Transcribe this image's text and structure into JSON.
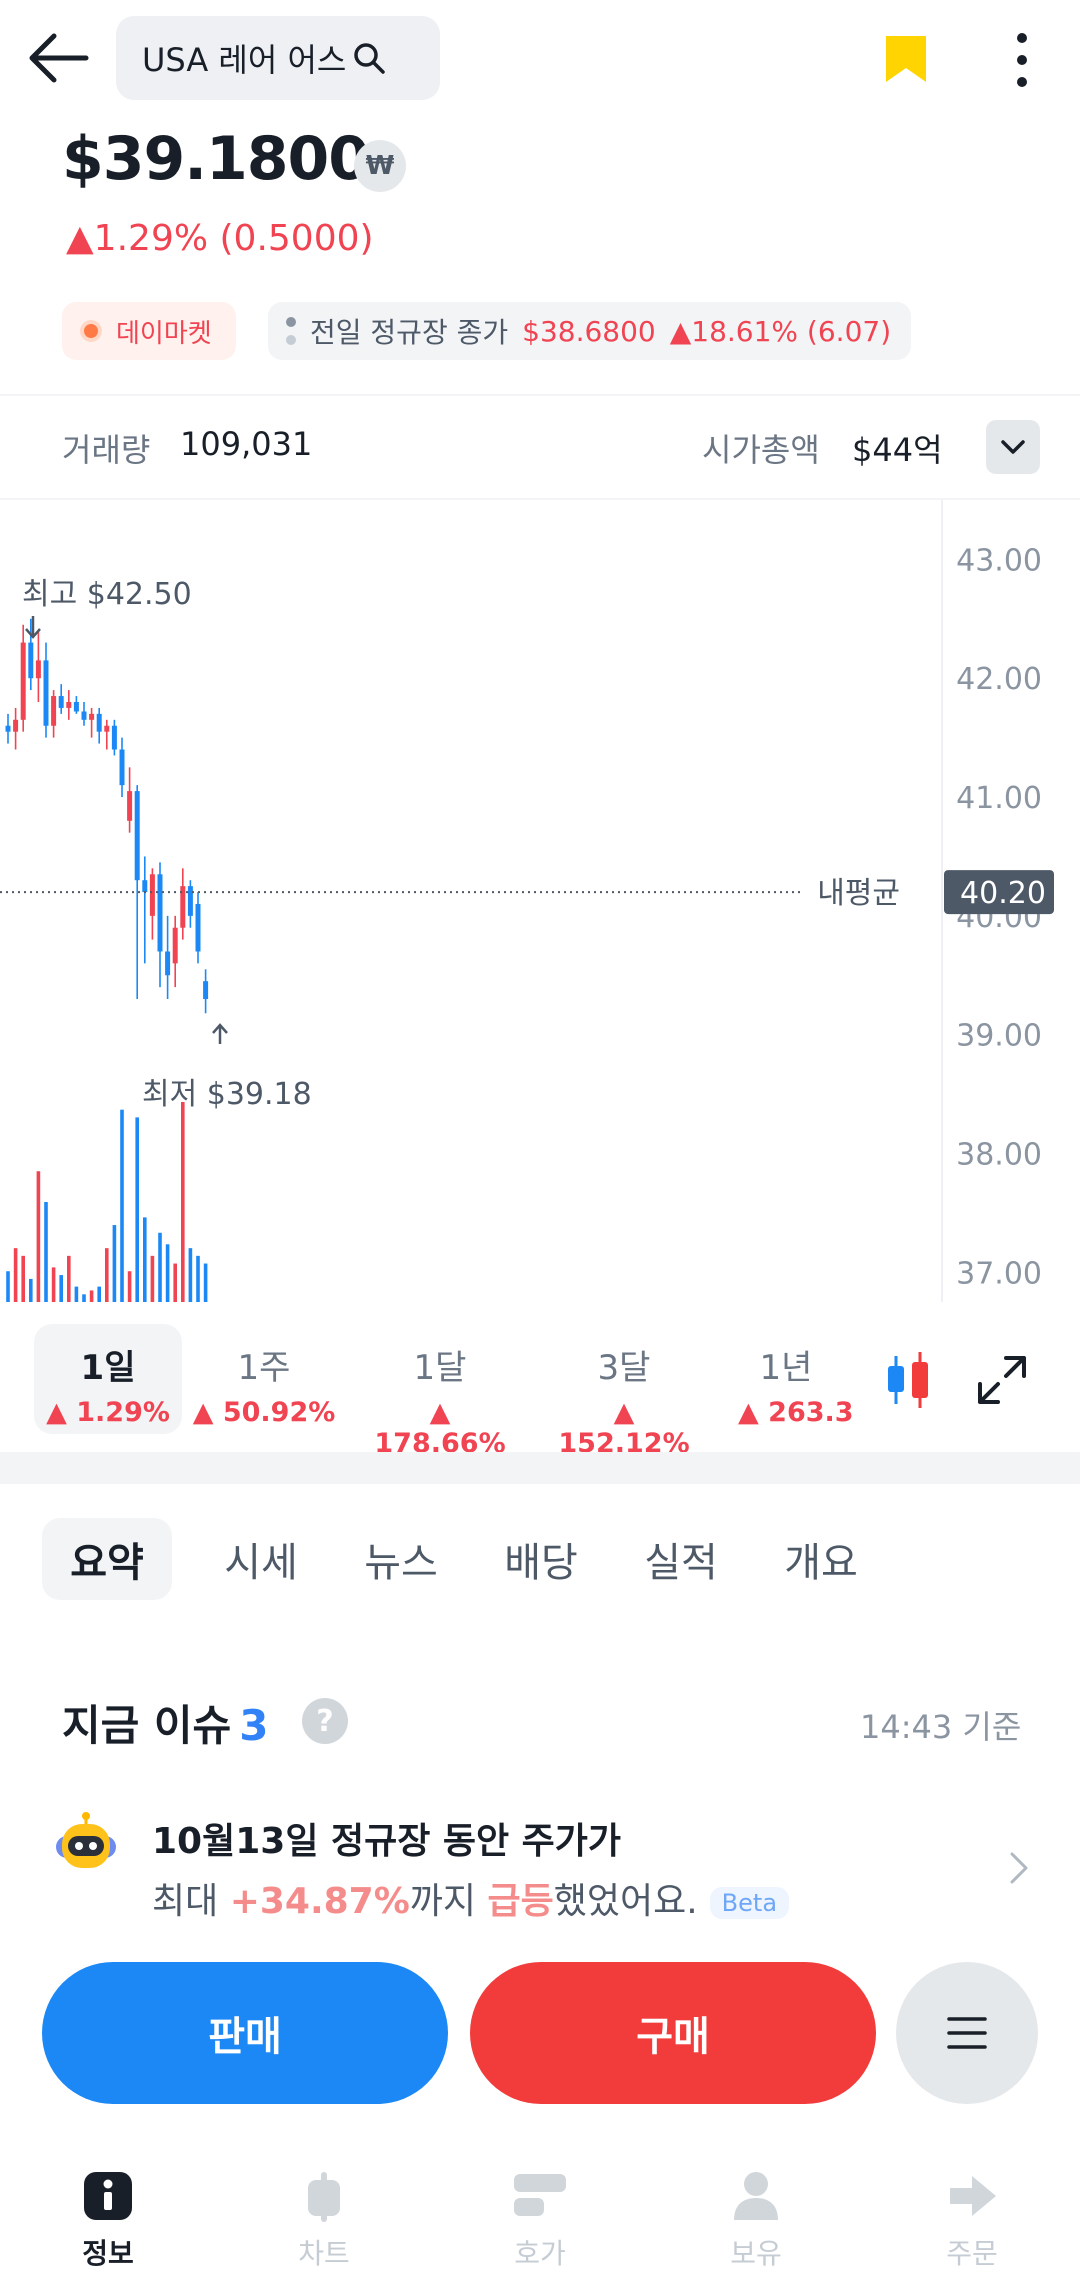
{
  "header": {
    "stock_name": "USA 레어 어스",
    "price": "$39.1800",
    "currency_badge": "₩",
    "change": "▲1.29% (0.5000)",
    "colors": {
      "bookmark": "#ffd400",
      "up": "#f04452",
      "down": "#1b88f5"
    }
  },
  "badges": {
    "daymarket": "데이마켓",
    "prev_label": "전일 정규장 종가",
    "prev_price": "$38.6800",
    "prev_change": "▲18.61% (6.07)"
  },
  "stats": {
    "volume_label": "거래량",
    "volume_value": "109,031",
    "mcap_label": "시가총액",
    "mcap_value": "$44억"
  },
  "chart_data": {
    "type": "candlestick",
    "yaxis_ticks": [
      "43.00",
      "42.00",
      "41.00",
      "40.00",
      "39.00",
      "38.00",
      "37.00"
    ],
    "ylim": [
      36.75,
      43.5
    ],
    "high_label": "최고 $42.50",
    "low_label": "최저 $39.18",
    "avg_label": "내평균",
    "avg_value": "40.20",
    "candles": [
      {
        "o": 41.6,
        "h": 41.7,
        "l": 41.45,
        "c": 41.55
      },
      {
        "o": 41.55,
        "h": 41.75,
        "l": 41.4,
        "c": 41.65
      },
      {
        "o": 41.65,
        "h": 42.45,
        "l": 41.55,
        "c": 42.3
      },
      {
        "o": 42.3,
        "h": 42.5,
        "l": 41.9,
        "c": 42.0
      },
      {
        "o": 42.0,
        "h": 42.4,
        "l": 41.8,
        "c": 42.15
      },
      {
        "o": 42.15,
        "h": 42.3,
        "l": 41.5,
        "c": 41.6
      },
      {
        "o": 41.6,
        "h": 41.9,
        "l": 41.5,
        "c": 41.85
      },
      {
        "o": 41.85,
        "h": 41.95,
        "l": 41.7,
        "c": 41.75
      },
      {
        "o": 41.75,
        "h": 41.9,
        "l": 41.65,
        "c": 41.8
      },
      {
        "o": 41.8,
        "h": 41.85,
        "l": 41.7,
        "c": 41.72
      },
      {
        "o": 41.72,
        "h": 41.8,
        "l": 41.6,
        "c": 41.65
      },
      {
        "o": 41.65,
        "h": 41.75,
        "l": 41.5,
        "c": 41.7
      },
      {
        "o": 41.7,
        "h": 41.75,
        "l": 41.45,
        "c": 41.55
      },
      {
        "o": 41.55,
        "h": 41.65,
        "l": 41.4,
        "c": 41.6
      },
      {
        "o": 41.6,
        "h": 41.65,
        "l": 41.35,
        "c": 41.4
      },
      {
        "o": 41.4,
        "h": 41.5,
        "l": 41.0,
        "c": 41.1
      },
      {
        "o": 40.8,
        "h": 41.25,
        "l": 40.7,
        "c": 41.05
      },
      {
        "o": 41.05,
        "h": 41.1,
        "l": 39.3,
        "c": 40.3
      },
      {
        "o": 40.3,
        "h": 40.5,
        "l": 39.6,
        "c": 40.2
      },
      {
        "o": 40.0,
        "h": 40.4,
        "l": 39.8,
        "c": 40.35
      },
      {
        "o": 40.35,
        "h": 40.45,
        "l": 39.4,
        "c": 39.7
      },
      {
        "o": 39.7,
        "h": 40.0,
        "l": 39.3,
        "c": 39.5
      },
      {
        "o": 39.6,
        "h": 40.0,
        "l": 39.4,
        "c": 39.9
      },
      {
        "o": 39.9,
        "h": 40.4,
        "l": 39.8,
        "c": 40.25
      },
      {
        "o": 40.25,
        "h": 40.3,
        "l": 39.9,
        "c": 40.0
      },
      {
        "o": 40.1,
        "h": 40.2,
        "l": 39.6,
        "c": 39.7
      },
      {
        "o": 39.45,
        "h": 39.55,
        "l": 39.18,
        "c": 39.3
      }
    ],
    "volume": [
      8,
      14,
      12,
      6,
      34,
      26,
      9,
      7,
      12,
      4,
      2,
      3,
      4,
      14,
      20,
      50,
      8,
      48,
      22,
      12,
      18,
      15,
      10,
      52,
      14,
      12,
      10
    ]
  },
  "periods": [
    {
      "label": "1일",
      "change": "▲ 1.29%"
    },
    {
      "label": "1주",
      "change": "▲ 50.92%"
    },
    {
      "label": "1달",
      "change": "▲ 178.66%"
    },
    {
      "label": "3달",
      "change": "▲ 152.12%"
    },
    {
      "label": "1년",
      "change": "▲ 263.3"
    }
  ],
  "tabs": [
    "요약",
    "시세",
    "뉴스",
    "배당",
    "실적",
    "개요"
  ],
  "issues": {
    "title": "지금 이슈",
    "count": "3",
    "time": "14:43 기준",
    "line1": "10월13일 정규장 동안 주가가",
    "line2_prefix": "최대 ",
    "line2_pct": "+34.87%",
    "line2_mid": "까지 ",
    "line2_surge": "급등",
    "line2_suffix": "했었어요.",
    "beta": "Beta"
  },
  "actions": {
    "sell": "판매",
    "buy": "구매"
  },
  "nav": [
    "정보",
    "차트",
    "호가",
    "보유",
    "주문"
  ]
}
